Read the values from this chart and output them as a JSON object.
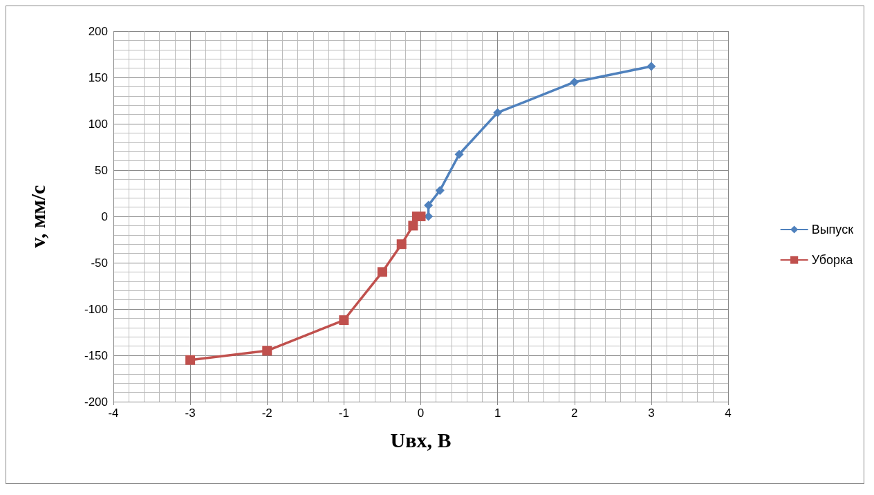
{
  "chart_data": {
    "type": "line",
    "xlabel": "Uвх, В",
    "ylabel": "v, мм/с",
    "xlim": [
      -4,
      4
    ],
    "xticks": [
      -4,
      -3,
      -2,
      -1,
      0,
      1,
      2,
      3,
      4
    ],
    "ylim": [
      -200,
      200
    ],
    "yticks": [
      -200,
      -150,
      -100,
      -50,
      0,
      50,
      100,
      150,
      200
    ],
    "grid": true,
    "legend": "right",
    "series": [
      {
        "name": "Выпуск",
        "color": "#4f81bd",
        "marker": "diamond",
        "x": [
          0.1,
          0.1,
          0.25,
          0.5,
          1,
          2,
          3
        ],
        "values": [
          0,
          12,
          28,
          67,
          112,
          145,
          162
        ]
      },
      {
        "name": "Уборка",
        "color": "#c0504d",
        "marker": "square",
        "x": [
          0,
          -0.05,
          -0.1,
          -0.25,
          -0.5,
          -1,
          -2,
          -3
        ],
        "values": [
          0,
          0,
          -10,
          -30,
          -60,
          -112,
          -145,
          -155
        ]
      }
    ]
  }
}
